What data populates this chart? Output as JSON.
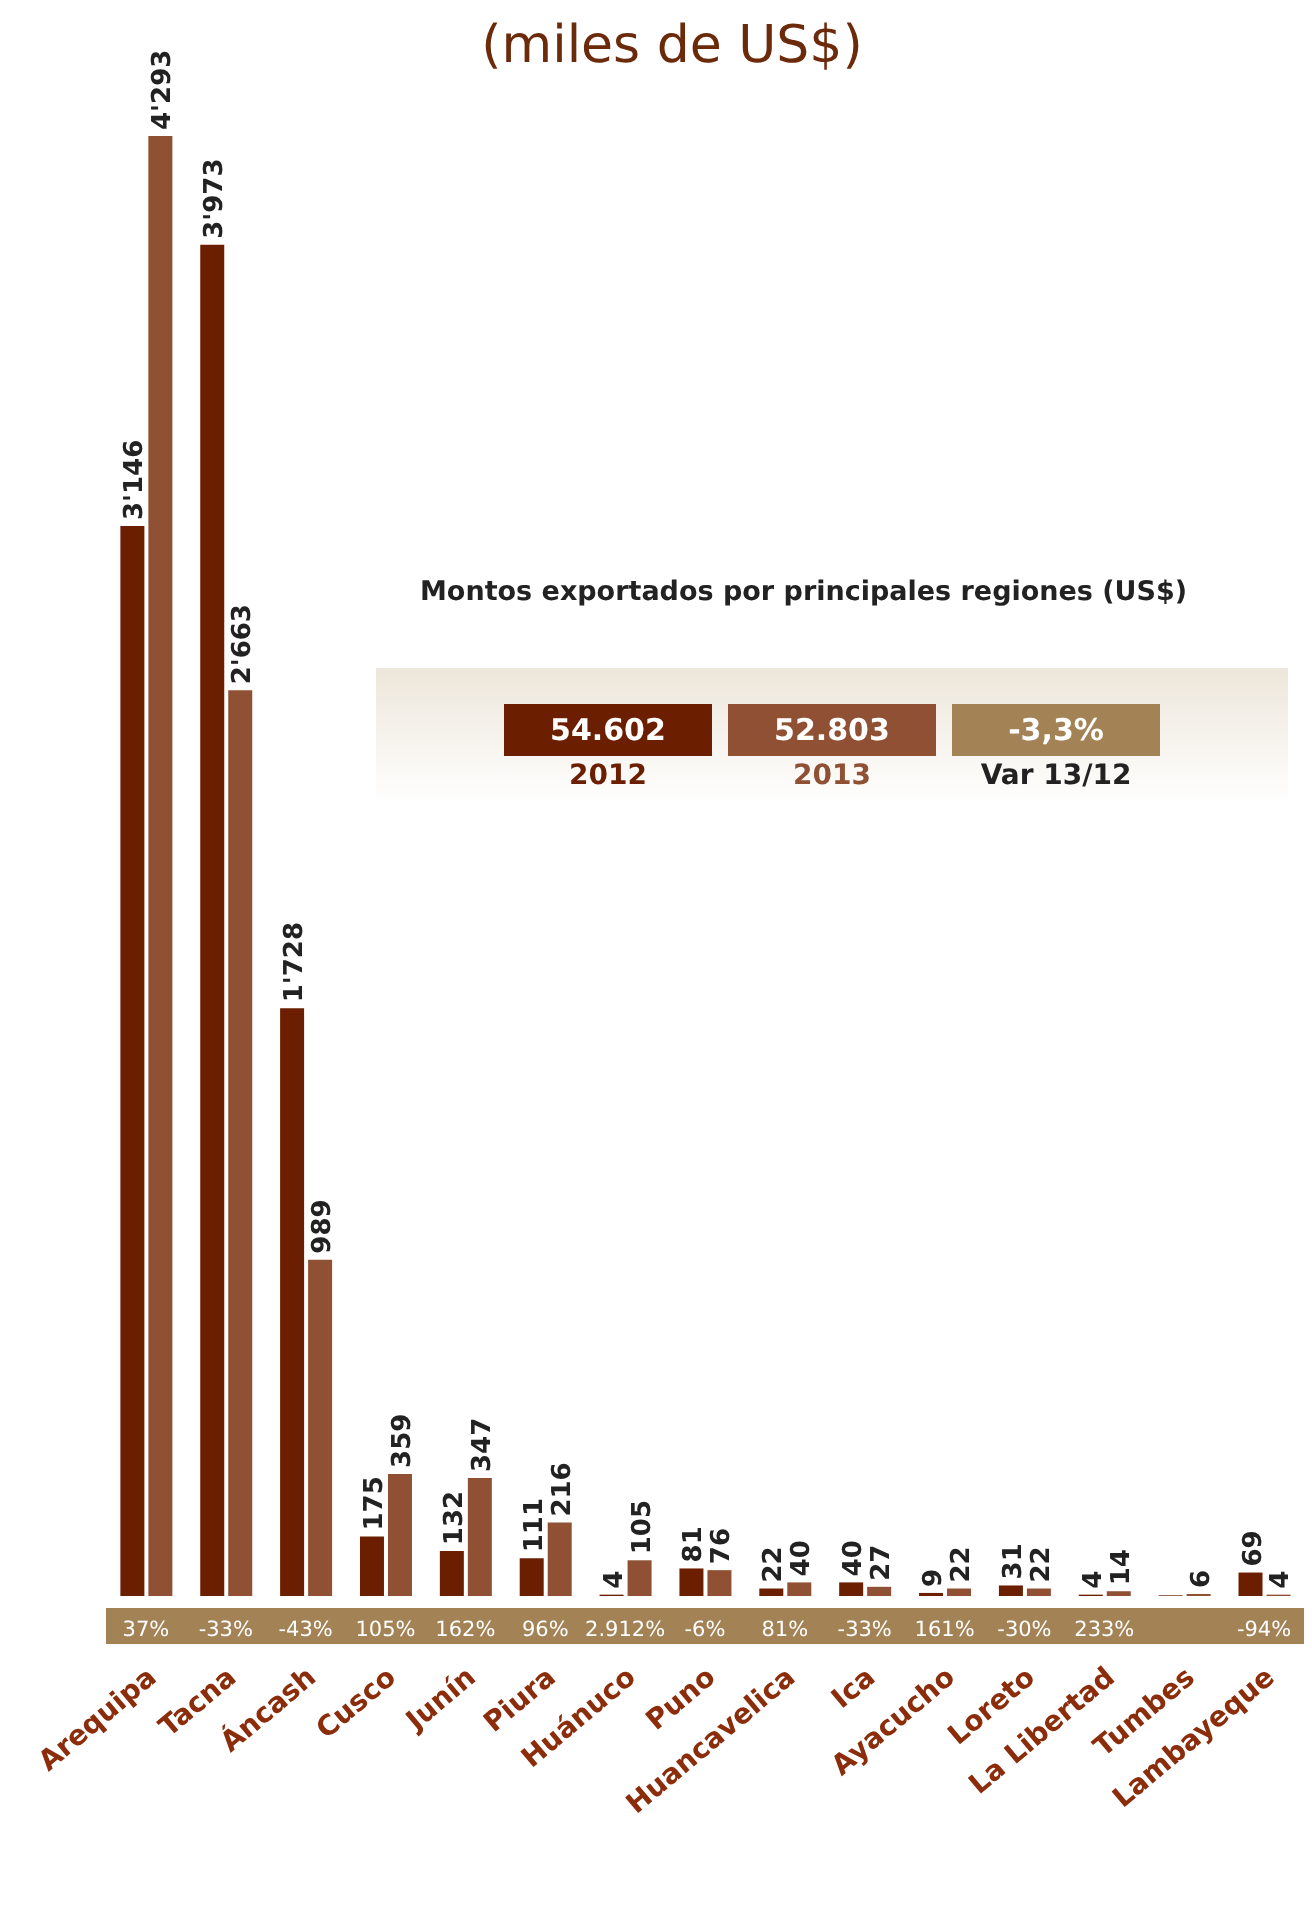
{
  "chart_data": {
    "type": "bar",
    "title": "(miles de US$)",
    "categories": [
      "Arequipa",
      "Tacna",
      "Áncash",
      "Cusco",
      "Junín",
      "Piura",
      "Huánuco",
      "Puno",
      "Huancavelica",
      "Ica",
      "Ayacucho",
      "Loreto",
      "La Libertad",
      "Tumbes",
      "Lambayeque"
    ],
    "series": [
      {
        "name": "2012",
        "color": "#6b1f00",
        "values": [
          3146,
          3973,
          1728,
          175,
          132,
          111,
          4,
          81,
          22,
          40,
          9,
          31,
          4,
          2,
          69
        ],
        "value_labels": [
          "3'146",
          "3'973",
          "1'728",
          "175",
          "132",
          "111",
          "4",
          "81",
          "22",
          "40",
          "9",
          "31",
          "4",
          null,
          "69"
        ]
      },
      {
        "name": "2013",
        "color": "#8f5034",
        "values": [
          4293,
          2663,
          989,
          359,
          347,
          216,
          105,
          76,
          40,
          27,
          22,
          22,
          14,
          6,
          4
        ],
        "value_labels": [
          "4'293",
          "2'663",
          "989",
          "359",
          "347",
          "216",
          "105",
          "76",
          "40",
          "27",
          "22",
          "22",
          "14",
          "6",
          "4"
        ]
      }
    ],
    "legend": "center",
    "annotations": [
      "Montos exportados por principales regiones (US$)",
      "54.602",
      "52.803",
      "-3,3%",
      "Var 13/12",
      "37%",
      "-33%",
      "-43%",
      "105%",
      "162%",
      "96%",
      "2.912%",
      "-6%",
      "81%",
      "-33%",
      "161%",
      "-30%",
      "233%",
      "-94%"
    ]
  }
}
